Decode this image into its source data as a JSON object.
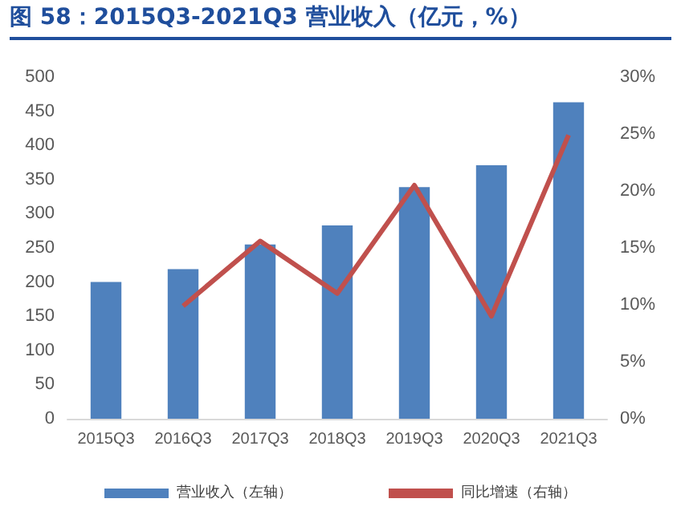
{
  "chart_data": {
    "type": "bar",
    "title": "图 58：2015Q3-2021Q3 营业收入（亿元，%）",
    "categories": [
      "2015Q3",
      "2016Q3",
      "2017Q3",
      "2018Q3",
      "2019Q3",
      "2020Q3",
      "2021Q3"
    ],
    "series": [
      {
        "name": "营业收入（左轴）",
        "color": "#4f81bd",
        "values": [
          200,
          219,
          255,
          283,
          339,
          371,
          463
        ]
      },
      {
        "name": "同比增速（右轴）",
        "type": "line",
        "axis": "y2",
        "color": "#c0504d",
        "values": [
          null,
          9.9,
          15.6,
          11.0,
          20.5,
          9.0,
          24.9
        ]
      }
    ],
    "ylim": [
      0,
      500
    ],
    "yticks": [
      0,
      50,
      100,
      150,
      200,
      250,
      300,
      350,
      400,
      450,
      500
    ],
    "y2lim": [
      0,
      30
    ],
    "y2ticks": [
      {
        "value": 0,
        "label": "0%"
      },
      {
        "value": 5,
        "label": "5%"
      },
      {
        "value": 10,
        "label": "10%"
      },
      {
        "value": 15,
        "label": "15%"
      },
      {
        "value": 20,
        "label": "20%"
      },
      {
        "value": 25,
        "label": "25%"
      },
      {
        "value": 30,
        "label": "30%"
      }
    ],
    "legend": "bottom",
    "grid": false,
    "marker": "none"
  }
}
